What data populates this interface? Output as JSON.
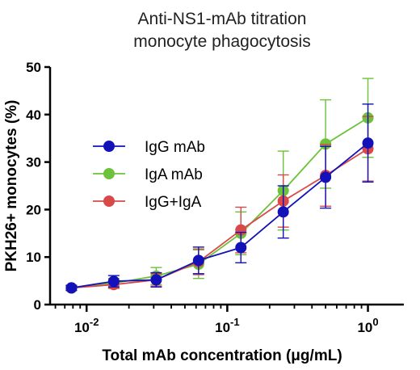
{
  "chart_data": {
    "type": "line",
    "title_lines": [
      "Anti-NS1-mAb titration",
      "monocyte phagocytosis"
    ],
    "xlabel": "Total mAb concentration (μg/mL)",
    "ylabel": "PKH26+ monocytes (%)",
    "x_scale": "log",
    "xlim": [
      0.0055,
      1.8
    ],
    "ylim": [
      0,
      50
    ],
    "y_ticks": [
      0,
      10,
      20,
      30,
      40,
      50
    ],
    "x_ticks": [
      {
        "value": 0.01,
        "base": "10",
        "exp": "-2"
      },
      {
        "value": 0.1,
        "base": "10",
        "exp": "-1"
      },
      {
        "value": 1,
        "base": "10",
        "exp": "0"
      }
    ],
    "x": [
      0.0078,
      0.0156,
      0.03125,
      0.0625,
      0.125,
      0.25,
      0.5,
      1.0
    ],
    "legend_position": "left-center",
    "grid": false,
    "series": [
      {
        "name": "IgA mAb",
        "color": "#6cc23a",
        "values": [
          3.5,
          4.5,
          6.0,
          8.5,
          15.0,
          24.0,
          33.8,
          39.3
        ],
        "errors": [
          0.6,
          1.0,
          1.8,
          3.0,
          4.5,
          8.3,
          9.3,
          8.3
        ]
      },
      {
        "name": "IgG+IgA",
        "color": "#d9494a",
        "values": [
          3.5,
          4.2,
          5.2,
          9.0,
          15.7,
          21.8,
          27.2,
          32.8
        ],
        "errors": [
          0.5,
          0.8,
          1.3,
          2.7,
          4.8,
          5.5,
          6.5,
          6.8
        ]
      },
      {
        "name": "IgG mAb",
        "color": "#1212b8",
        "values": [
          3.5,
          4.9,
          5.2,
          9.3,
          12.0,
          19.5,
          26.8,
          34.0
        ],
        "errors": [
          0.5,
          1.2,
          1.5,
          2.8,
          3.2,
          5.5,
          6.5,
          8.2
        ]
      }
    ],
    "legend_order": [
      2,
      0,
      1
    ]
  }
}
